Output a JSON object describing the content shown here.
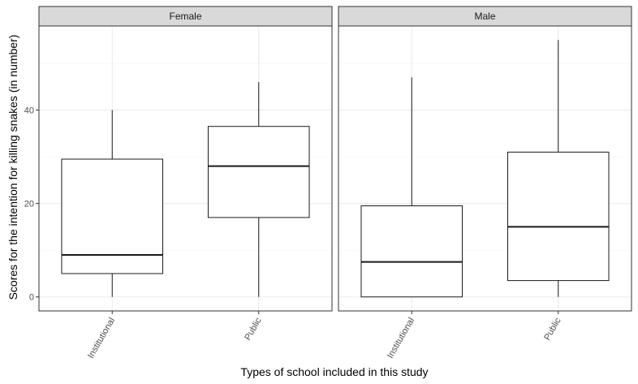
{
  "chart_data": {
    "type": "boxplot",
    "title": "",
    "xlabel": "Types of school included in this study",
    "ylabel": "Scores for the intention for killing snakes (in number)",
    "ylim": [
      -3,
      58
    ],
    "yticks": [
      0,
      20,
      40
    ],
    "grid": true,
    "categories": [
      "Institutional",
      "Public"
    ],
    "facets": [
      {
        "label": "Female",
        "boxes": [
          {
            "category": "Institutional",
            "min": 0,
            "q1": 5,
            "median": 9,
            "q3": 29.5,
            "max": 40
          },
          {
            "category": "Public",
            "min": 0,
            "q1": 17,
            "median": 28,
            "q3": 36.5,
            "max": 46
          }
        ]
      },
      {
        "label": "Male",
        "boxes": [
          {
            "category": "Institutional",
            "min": 0,
            "q1": 0,
            "median": 7.5,
            "q3": 19.5,
            "max": 47
          },
          {
            "category": "Public",
            "min": 0,
            "q1": 3.5,
            "median": 15,
            "q3": 31,
            "max": 55
          }
        ]
      }
    ]
  },
  "colors": {
    "strip_fill": "#d9d9d9",
    "panel_border": "#333333",
    "grid_major": "#ebebeb",
    "grid_minor": "#f5f5f5",
    "box_line": "#1a1a1a"
  }
}
